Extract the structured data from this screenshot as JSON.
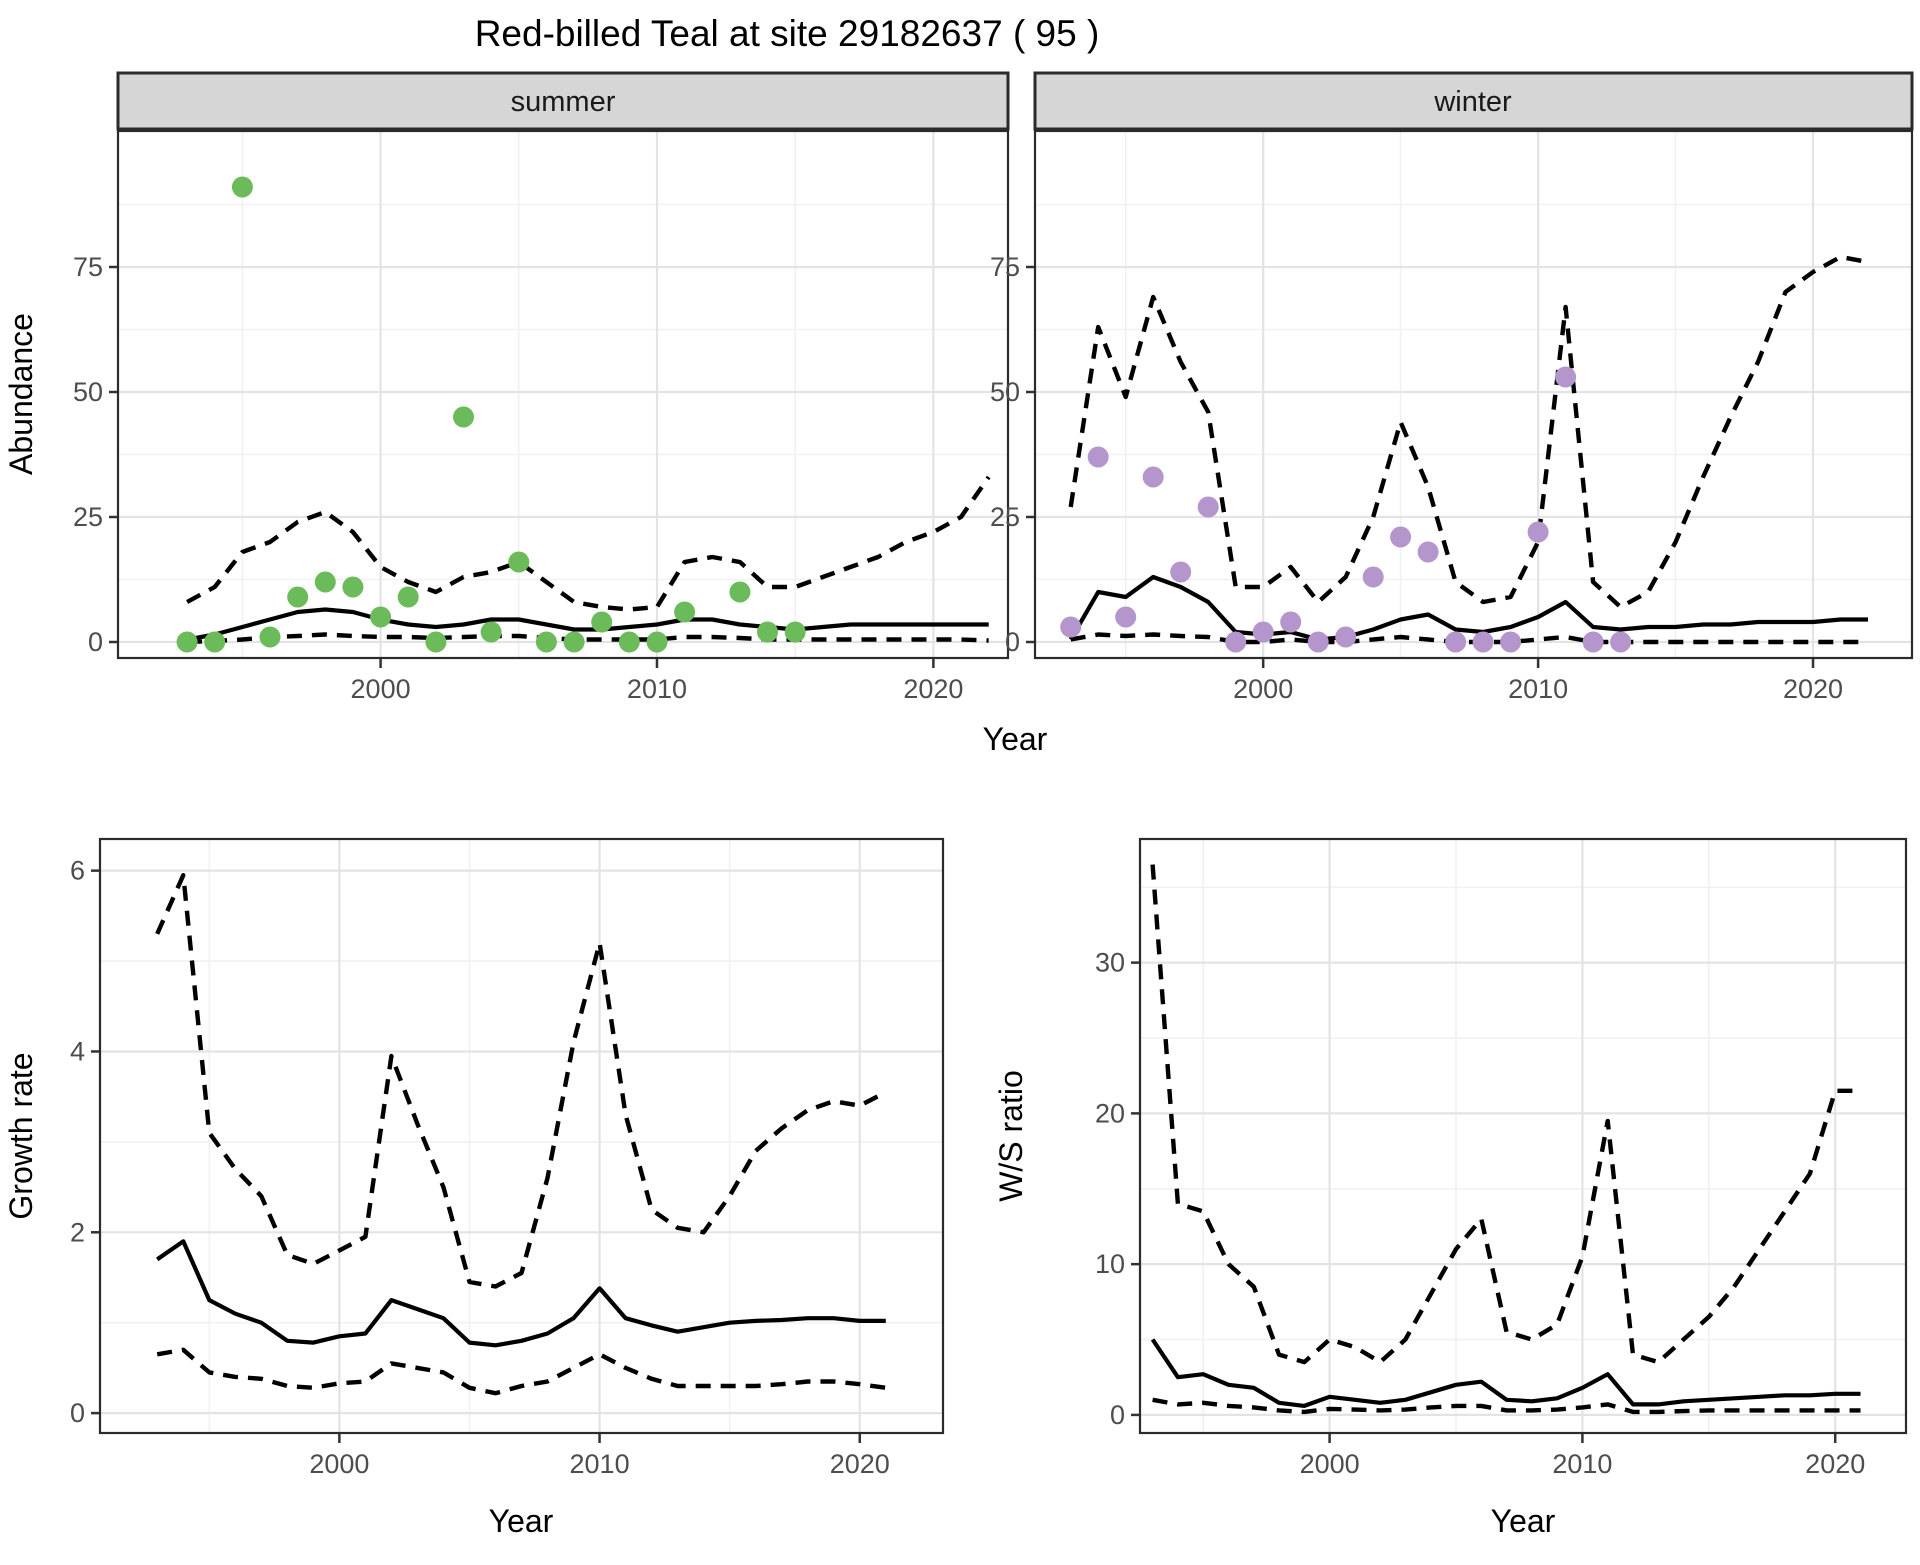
{
  "title": "Red-billed Teal at site 29182637 ( 95 )",
  "colors": {
    "summer_point": "#6cbb5b",
    "winter_point": "#b495cc",
    "line": "#000000",
    "strip_bg": "#d6d6d6",
    "strip_border": "#2b2b2b",
    "panel_border": "#2b2b2b",
    "grid_major": "#e3e3e3",
    "grid_minor": "#f1f1f1",
    "tick_mark": "#333333",
    "tick_label": "#4d4d4d"
  },
  "chart_data": [
    {
      "id": "abundance-summer",
      "type": "scatter",
      "facet_label": "summer",
      "xlabel": "Year",
      "ylabel": "Abundance",
      "xlim": [
        1990.5,
        2022.7
      ],
      "ylim": [
        -3.2,
        102.2
      ],
      "x_ticks": [
        2000,
        2010,
        2020
      ],
      "x_minor": [
        1995,
        2005,
        2015
      ],
      "y_ticks": [
        0,
        25,
        50,
        75
      ],
      "y_minor": [
        12.5,
        37.5,
        62.5,
        87.5
      ],
      "points": {
        "years": [
          1993,
          1994,
          1995,
          1996,
          1997,
          1998,
          1999,
          2000,
          2001,
          2002,
          2003,
          2004,
          2005,
          2006,
          2007,
          2008,
          2009,
          2010,
          2011,
          2013,
          2014,
          2015
        ],
        "values": [
          0,
          0,
          91,
          1,
          9,
          12,
          11,
          5,
          9,
          0,
          45,
          2,
          16,
          0,
          0,
          4,
          0,
          0,
          6,
          10,
          2,
          2
        ]
      },
      "series": [
        {
          "name": "upper-95",
          "style": "dashed",
          "years": [
            1993,
            1994,
            1995,
            1996,
            1997,
            1998,
            1999,
            2000,
            2001,
            2002,
            2003,
            2004,
            2005,
            2006,
            2007,
            2008,
            2009,
            2010,
            2011,
            2012,
            2013,
            2014,
            2015,
            2016,
            2017,
            2018,
            2019,
            2020,
            2021,
            2022
          ],
          "values": [
            8,
            11,
            18,
            20,
            24,
            26,
            22,
            15,
            12,
            10,
            13,
            14,
            16,
            12,
            8,
            7,
            6.5,
            7,
            16,
            17,
            16,
            11,
            11,
            13,
            15,
            17,
            20,
            22,
            25,
            33
          ]
        },
        {
          "name": "median",
          "style": "solid",
          "years": [
            1993,
            1994,
            1995,
            1996,
            1997,
            1998,
            1999,
            2000,
            2001,
            2002,
            2003,
            2004,
            2005,
            2006,
            2007,
            2008,
            2009,
            2010,
            2011,
            2012,
            2013,
            2014,
            2015,
            2016,
            2017,
            2018,
            2019,
            2020,
            2021,
            2022
          ],
          "values": [
            0.5,
            1.5,
            3,
            4.5,
            6,
            6.5,
            6,
            4.5,
            3.5,
            3,
            3.5,
            4.5,
            4.5,
            3.5,
            2.5,
            2.5,
            3,
            3.5,
            4.5,
            4.5,
            3.5,
            3,
            2.5,
            3,
            3.5,
            3.5,
            3.5,
            3.5,
            3.5,
            3.5
          ]
        },
        {
          "name": "lower-95",
          "style": "dashed",
          "years": [
            1993,
            1994,
            1995,
            1996,
            1997,
            1998,
            1999,
            2000,
            2001,
            2002,
            2003,
            2004,
            2005,
            2006,
            2007,
            2008,
            2009,
            2010,
            2011,
            2012,
            2013,
            2014,
            2015,
            2016,
            2017,
            2018,
            2019,
            2020,
            2021,
            2022
          ],
          "values": [
            0,
            0.2,
            0.5,
            1,
            1.2,
            1.5,
            1.2,
            1,
            1,
            0.8,
            1,
            1.2,
            1.2,
            0.8,
            0.5,
            0.5,
            0.5,
            0.5,
            1,
            1,
            0.8,
            0.5,
            0.5,
            0.5,
            0.5,
            0.5,
            0.5,
            0.5,
            0.5,
            0.3
          ]
        }
      ]
    },
    {
      "id": "abundance-winter",
      "type": "scatter",
      "facet_label": "winter",
      "xlabel": "Year",
      "ylabel": "Abundance",
      "xlim": [
        1991.7,
        2023.6
      ],
      "ylim": [
        -3.2,
        102.2
      ],
      "x_ticks": [
        2000,
        2010,
        2020
      ],
      "x_minor": [
        1995,
        2005,
        2015
      ],
      "y_ticks": [
        0,
        25,
        50,
        75
      ],
      "y_minor": [
        12.5,
        37.5,
        62.5,
        87.5
      ],
      "points": {
        "years": [
          1993,
          1994,
          1995,
          1996,
          1997,
          1998,
          1999,
          2000,
          2001,
          2002,
          2003,
          2004,
          2005,
          2006,
          2007,
          2008,
          2009,
          2010,
          2011,
          2012,
          2013
        ],
        "values": [
          3,
          37,
          5,
          33,
          14,
          27,
          0,
          2,
          4,
          0,
          1,
          13,
          21,
          18,
          0,
          0,
          0,
          22,
          53,
          0,
          0
        ]
      },
      "series": [
        {
          "name": "upper-95",
          "style": "dashed",
          "years": [
            1993,
            1994,
            1995,
            1996,
            1997,
            1998,
            1999,
            2000,
            2001,
            2002,
            2003,
            2004,
            2005,
            2006,
            2007,
            2008,
            2009,
            2010,
            2011,
            2012,
            2013,
            2014,
            2015,
            2016,
            2017,
            2018,
            2019,
            2020,
            2021,
            2022
          ],
          "values": [
            27,
            63,
            49,
            69,
            56,
            46,
            11,
            11,
            15,
            8,
            13,
            25,
            44,
            31,
            12,
            8,
            9,
            20,
            67,
            12,
            7,
            10,
            20,
            33,
            45,
            56,
            70,
            74,
            77,
            76
          ]
        },
        {
          "name": "median",
          "style": "solid",
          "years": [
            1993,
            1994,
            1995,
            1996,
            1997,
            1998,
            1999,
            2000,
            2001,
            2002,
            2003,
            2004,
            2005,
            2006,
            2007,
            2008,
            2009,
            2010,
            2011,
            2012,
            2013,
            2014,
            2015,
            2016,
            2017,
            2018,
            2019,
            2020,
            2021,
            2022
          ],
          "values": [
            0.5,
            10,
            9,
            13,
            11,
            8,
            2,
            1.5,
            2,
            0.5,
            1,
            2.5,
            4.5,
            5.5,
            2.5,
            2,
            3,
            5,
            8,
            3,
            2.5,
            3,
            3,
            3.5,
            3.5,
            4,
            4,
            4,
            4.5,
            4.5
          ]
        },
        {
          "name": "lower-95",
          "style": "dashed",
          "years": [
            1993,
            1994,
            1995,
            1996,
            1997,
            1998,
            1999,
            2000,
            2001,
            2002,
            2003,
            2004,
            2005,
            2006,
            2007,
            2008,
            2009,
            2010,
            2011,
            2012,
            2013,
            2014,
            2015,
            2016,
            2017,
            2018,
            2019,
            2020,
            2021,
            2022
          ],
          "values": [
            0.5,
            1.5,
            1.2,
            1.5,
            1.2,
            1,
            0,
            0,
            0.5,
            0,
            0,
            0.5,
            1,
            0.5,
            0,
            0,
            0,
            0.5,
            1,
            0,
            0,
            0,
            0,
            0,
            0,
            0,
            0,
            0,
            0,
            0
          ]
        }
      ]
    },
    {
      "id": "growth-rate",
      "type": "line",
      "facet_label": "",
      "xlabel": "Year",
      "ylabel": "Growth rate",
      "xlim": [
        1990.8,
        2023.2
      ],
      "ylim": [
        -0.22,
        6.35
      ],
      "x_ticks": [
        2000,
        2010,
        2020
      ],
      "x_minor": [
        1995,
        2005,
        2015
      ],
      "y_ticks": [
        0,
        2,
        4,
        6
      ],
      "y_minor": [
        1,
        3,
        5
      ],
      "series": [
        {
          "name": "upper-95",
          "style": "dashed",
          "years": [
            1993,
            1994,
            1995,
            1996,
            1997,
            1998,
            1999,
            2000,
            2001,
            2002,
            2003,
            2004,
            2005,
            2006,
            2007,
            2008,
            2009,
            2010,
            2011,
            2012,
            2013,
            2014,
            2015,
            2016,
            2017,
            2018,
            2019,
            2020,
            2021
          ],
          "values": [
            5.3,
            5.95,
            3.1,
            2.7,
            2.4,
            1.75,
            1.65,
            1.8,
            1.95,
            3.95,
            3.2,
            2.5,
            1.45,
            1.4,
            1.55,
            2.6,
            4.1,
            5.2,
            3.3,
            2.25,
            2.05,
            2.0,
            2.4,
            2.9,
            3.15,
            3.35,
            3.45,
            3.4,
            3.55
          ]
        },
        {
          "name": "median",
          "style": "solid",
          "years": [
            1993,
            1994,
            1995,
            1996,
            1997,
            1998,
            1999,
            2000,
            2001,
            2002,
            2003,
            2004,
            2005,
            2006,
            2007,
            2008,
            2009,
            2010,
            2011,
            2012,
            2013,
            2014,
            2015,
            2016,
            2017,
            2018,
            2019,
            2020,
            2021
          ],
          "values": [
            1.7,
            1.9,
            1.25,
            1.1,
            1.0,
            0.8,
            0.78,
            0.85,
            0.88,
            1.25,
            1.15,
            1.05,
            0.78,
            0.75,
            0.8,
            0.88,
            1.05,
            1.38,
            1.05,
            0.97,
            0.9,
            0.95,
            1.0,
            1.02,
            1.03,
            1.05,
            1.05,
            1.02,
            1.02
          ]
        },
        {
          "name": "lower-95",
          "style": "dashed",
          "years": [
            1993,
            1994,
            1995,
            1996,
            1997,
            1998,
            1999,
            2000,
            2001,
            2002,
            2003,
            2004,
            2005,
            2006,
            2007,
            2008,
            2009,
            2010,
            2011,
            2012,
            2013,
            2014,
            2015,
            2016,
            2017,
            2018,
            2019,
            2020,
            2021
          ],
          "values": [
            0.65,
            0.7,
            0.45,
            0.4,
            0.38,
            0.3,
            0.28,
            0.33,
            0.35,
            0.55,
            0.5,
            0.45,
            0.28,
            0.22,
            0.3,
            0.35,
            0.5,
            0.65,
            0.5,
            0.38,
            0.3,
            0.3,
            0.3,
            0.3,
            0.32,
            0.35,
            0.35,
            0.32,
            0.28
          ]
        }
      ]
    },
    {
      "id": "ws-ratio",
      "type": "line",
      "facet_label": "",
      "xlabel": "Year",
      "ylabel": "W/S ratio",
      "xlim": [
        1992.5,
        2022.8
      ],
      "ylim": [
        -1.2,
        38.2
      ],
      "x_ticks": [
        2000,
        2010,
        2020
      ],
      "x_minor": [
        1995,
        2005,
        2015
      ],
      "y_ticks": [
        0,
        10,
        20,
        30
      ],
      "y_minor": [
        5,
        15,
        25,
        35
      ],
      "series": [
        {
          "name": "upper-95",
          "style": "dashed",
          "years": [
            1993,
            1994,
            1995,
            1996,
            1997,
            1998,
            1999,
            2000,
            2001,
            2002,
            2003,
            2004,
            2005,
            2006,
            2007,
            2008,
            2009,
            2010,
            2011,
            2012,
            2013,
            2014,
            2015,
            2016,
            2017,
            2018,
            2019,
            2020,
            2021
          ],
          "values": [
            36.5,
            14,
            13.5,
            10,
            8.5,
            4,
            3.5,
            5,
            4.5,
            3.5,
            5,
            8,
            11,
            13,
            5.5,
            5,
            6,
            10.5,
            19.5,
            4,
            3.5,
            5,
            6.5,
            8.5,
            11,
            13.5,
            16,
            21.5,
            21.5
          ]
        },
        {
          "name": "median",
          "style": "solid",
          "years": [
            1993,
            1994,
            1995,
            1996,
            1997,
            1998,
            1999,
            2000,
            2001,
            2002,
            2003,
            2004,
            2005,
            2006,
            2007,
            2008,
            2009,
            2010,
            2011,
            2012,
            2013,
            2014,
            2015,
            2016,
            2017,
            2018,
            2019,
            2020,
            2021
          ],
          "values": [
            5,
            2.5,
            2.7,
            2,
            1.8,
            0.8,
            0.6,
            1.2,
            1,
            0.8,
            1,
            1.5,
            2,
            2.2,
            1,
            0.9,
            1.1,
            1.8,
            2.7,
            0.7,
            0.7,
            0.9,
            1,
            1.1,
            1.2,
            1.3,
            1.3,
            1.4,
            1.4
          ]
        },
        {
          "name": "lower-95",
          "style": "dashed",
          "years": [
            1993,
            1994,
            1995,
            1996,
            1997,
            1998,
            1999,
            2000,
            2001,
            2002,
            2003,
            2004,
            2005,
            2006,
            2007,
            2008,
            2009,
            2010,
            2011,
            2012,
            2013,
            2014,
            2015,
            2016,
            2017,
            2018,
            2019,
            2020,
            2021
          ],
          "values": [
            1,
            0.7,
            0.8,
            0.6,
            0.5,
            0.3,
            0.2,
            0.4,
            0.35,
            0.3,
            0.35,
            0.5,
            0.6,
            0.6,
            0.3,
            0.3,
            0.35,
            0.5,
            0.7,
            0.2,
            0.2,
            0.25,
            0.3,
            0.3,
            0.3,
            0.3,
            0.3,
            0.3,
            0.3
          ]
        }
      ]
    }
  ]
}
